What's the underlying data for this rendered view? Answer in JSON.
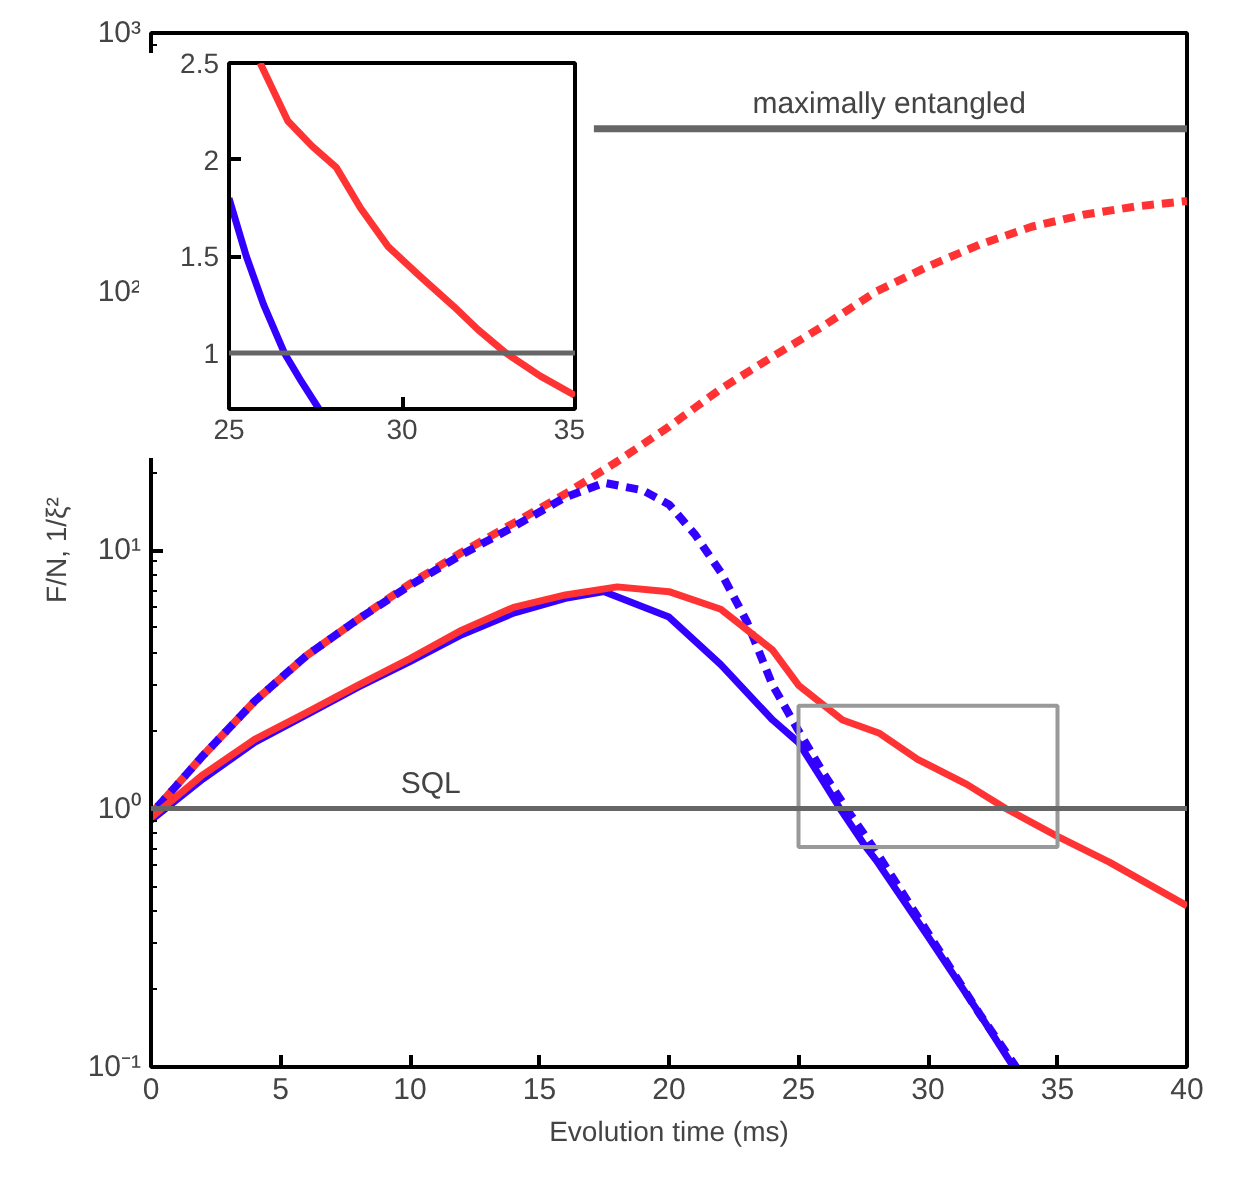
{
  "chart_data": [
    {
      "type": "line",
      "xlabel": "Evolution time (ms)",
      "ylabel": "F/N, 1/ξ²",
      "xlim": [
        0,
        40
      ],
      "xticks": [
        0,
        5,
        10,
        15,
        20,
        25,
        30,
        35,
        40
      ],
      "ylim": [
        0.1,
        1000
      ],
      "yticks": [
        {
          "value": 0.1,
          "label": "10⁻¹"
        },
        {
          "value": 1,
          "label": "10⁰"
        },
        {
          "value": 10,
          "label": "10¹"
        },
        {
          "value": 100,
          "label": "10²"
        },
        {
          "value": 1000,
          "label": "10³"
        }
      ],
      "log": "y",
      "grid": false,
      "series": [
        {
          "color": "#ff3333",
          "line_style": "dashed",
          "x": [
            0,
            2,
            4,
            6,
            8,
            10,
            12,
            14,
            16,
            18,
            20,
            22,
            24,
            26,
            28,
            30,
            32,
            34,
            36,
            38,
            40
          ],
          "values": [
            0.95,
            1.6,
            2.6,
            3.9,
            5.4,
            7.4,
            9.8,
            12.7,
            16.5,
            22,
            30,
            42,
            56,
            74,
            100,
            125,
            152,
            178,
            198,
            213,
            224
          ]
        },
        {
          "color": "#3300ff",
          "line_style": "dashed",
          "x": [
            0,
            2,
            4,
            6,
            8,
            10,
            12,
            14,
            16,
            17.5,
            19,
            20,
            21,
            22,
            23,
            24,
            25,
            26,
            27,
            28,
            30,
            32,
            33.4
          ],
          "values": [
            0.95,
            1.6,
            2.6,
            3.9,
            5.4,
            7.3,
            9.6,
            12.3,
            16,
            18.2,
            17,
            15,
            11.5,
            8.2,
            5.3,
            3.0,
            2.0,
            1.35,
            0.95,
            0.68,
            0.33,
            0.16,
            0.1
          ]
        },
        {
          "color": "#3300ff",
          "line_style": "solid",
          "x": [
            0,
            2,
            4,
            6,
            8,
            10,
            12,
            14,
            16,
            17.5,
            20,
            22,
            24,
            25,
            26,
            26.6,
            27.6,
            28,
            30,
            32,
            33.3
          ],
          "values": [
            0.9,
            1.3,
            1.8,
            2.3,
            2.95,
            3.7,
            4.7,
            5.7,
            6.5,
            6.9,
            5.5,
            3.6,
            2.2,
            1.8,
            1.25,
            1.0,
            0.71,
            0.63,
            0.32,
            0.16,
            0.1
          ]
        },
        {
          "color": "#ff3333",
          "line_style": "solid",
          "x": [
            0,
            2,
            4,
            6,
            8,
            10,
            12,
            14,
            16,
            18,
            20,
            22,
            24,
            25,
            26,
            26.7,
            28.1,
            29.6,
            31.5,
            33,
            35,
            37,
            40
          ],
          "values": [
            0.92,
            1.35,
            1.85,
            2.35,
            3.0,
            3.8,
            4.9,
            6.0,
            6.7,
            7.2,
            6.9,
            5.9,
            4.1,
            3.0,
            2.5,
            2.2,
            1.96,
            1.55,
            1.24,
            1.0,
            0.78,
            0.62,
            0.42
          ]
        },
        {
          "color": "#666666",
          "line_style": "solid",
          "x": [
            17.1,
            40
          ],
          "values": [
            426,
            426
          ]
        }
      ],
      "ref_lines": [
        {
          "axis": "y",
          "value": 1,
          "color": "#666666"
        }
      ],
      "annotations": [
        {
          "text": "SQL",
          "x": 10.8,
          "y": 1
        },
        {
          "text": "maximally entangled",
          "x": 28.5,
          "y": 426
        }
      ]
    },
    {
      "type": "line",
      "xlim": [
        25,
        35
      ],
      "xticks": [
        25,
        30,
        35
      ],
      "ylim": [
        0.71,
        2.5
      ],
      "yticks": [
        1,
        1.5,
        2,
        2.5
      ],
      "grid": false,
      "series": [
        {
          "color": "#ff3333",
          "line_style": "solid",
          "x": [
            25.9,
            26.7,
            27.4,
            28.1,
            28.8,
            29.6,
            30.5,
            31.5,
            32.2,
            33,
            34,
            35
          ],
          "values": [
            2.5,
            2.2,
            2.07,
            1.96,
            1.75,
            1.55,
            1.4,
            1.24,
            1.12,
            1.0,
            0.88,
            0.78
          ]
        },
        {
          "color": "#3300ff",
          "line_style": "solid",
          "x": [
            25,
            25.5,
            26,
            26.6,
            27.1,
            27.6
          ],
          "values": [
            1.8,
            1.5,
            1.25,
            1.0,
            0.85,
            0.71
          ]
        }
      ],
      "ref_lines": [
        {
          "axis": "y",
          "value": 1,
          "color": "#666666"
        }
      ]
    }
  ]
}
